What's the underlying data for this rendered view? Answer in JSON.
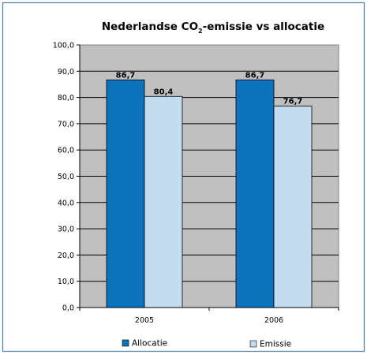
{
  "chart_data": {
    "type": "bar",
    "title": {
      "before": "Nederlandse CO",
      "subscript": "2",
      "after": "-emissie vs allocatie"
    },
    "categories": [
      "2005",
      "2006"
    ],
    "series": [
      {
        "name": "Allocatie",
        "color": "#0e73bd",
        "values": [
          86.7,
          86.7
        ],
        "labels": [
          "86,7",
          "86,7"
        ]
      },
      {
        "name": "Emissie",
        "color": "#c3dcef",
        "values": [
          80.4,
          76.7
        ],
        "labels": [
          "80,4",
          "76,7"
        ]
      }
    ],
    "ylim": [
      0,
      100
    ],
    "yticks": [
      "0,0",
      "10,0",
      "20,0",
      "30,0",
      "40,0",
      "50,0",
      "60,0",
      "70,0",
      "80,0",
      "90,0",
      "100,0"
    ],
    "plot_background": "#c0c0c0",
    "frame_border_color": "#4a78b5",
    "grid": true,
    "legend_position": "bottom"
  }
}
